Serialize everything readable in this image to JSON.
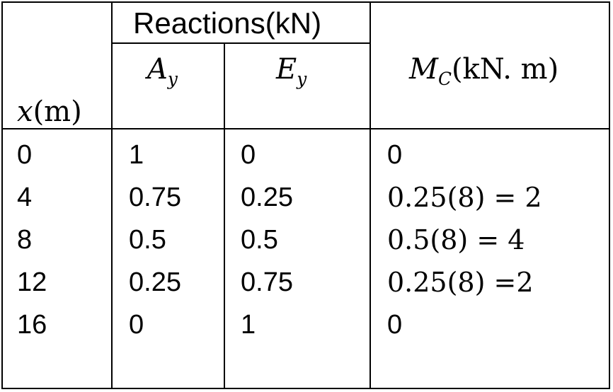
{
  "header": {
    "group_label": "Reactions(kN)",
    "x_symbol": "x",
    "x_unit": "(m)",
    "ay_symbol": "A",
    "ay_sub": "y",
    "ey_symbol": "E",
    "ey_sub": "y",
    "mc_symbol": "M",
    "mc_sub": "C",
    "mc_unit": "(kN. m)"
  },
  "rows": [
    {
      "x": "0",
      "ay": "1",
      "ey": "0",
      "mc": "0"
    },
    {
      "x": "4",
      "ay": "0.75",
      "ey": "0.25",
      "mc": "0.25(8) = 2"
    },
    {
      "x": "8",
      "ay": "0.5",
      "ey": "0.5",
      "mc": "0.5(8) = 4"
    },
    {
      "x": "12",
      "ay": "0.25",
      "ey": "0.75",
      "mc": "0.25(8) =2"
    },
    {
      "x": "16",
      "ay": "0",
      "ey": "1",
      "mc": "0"
    }
  ]
}
